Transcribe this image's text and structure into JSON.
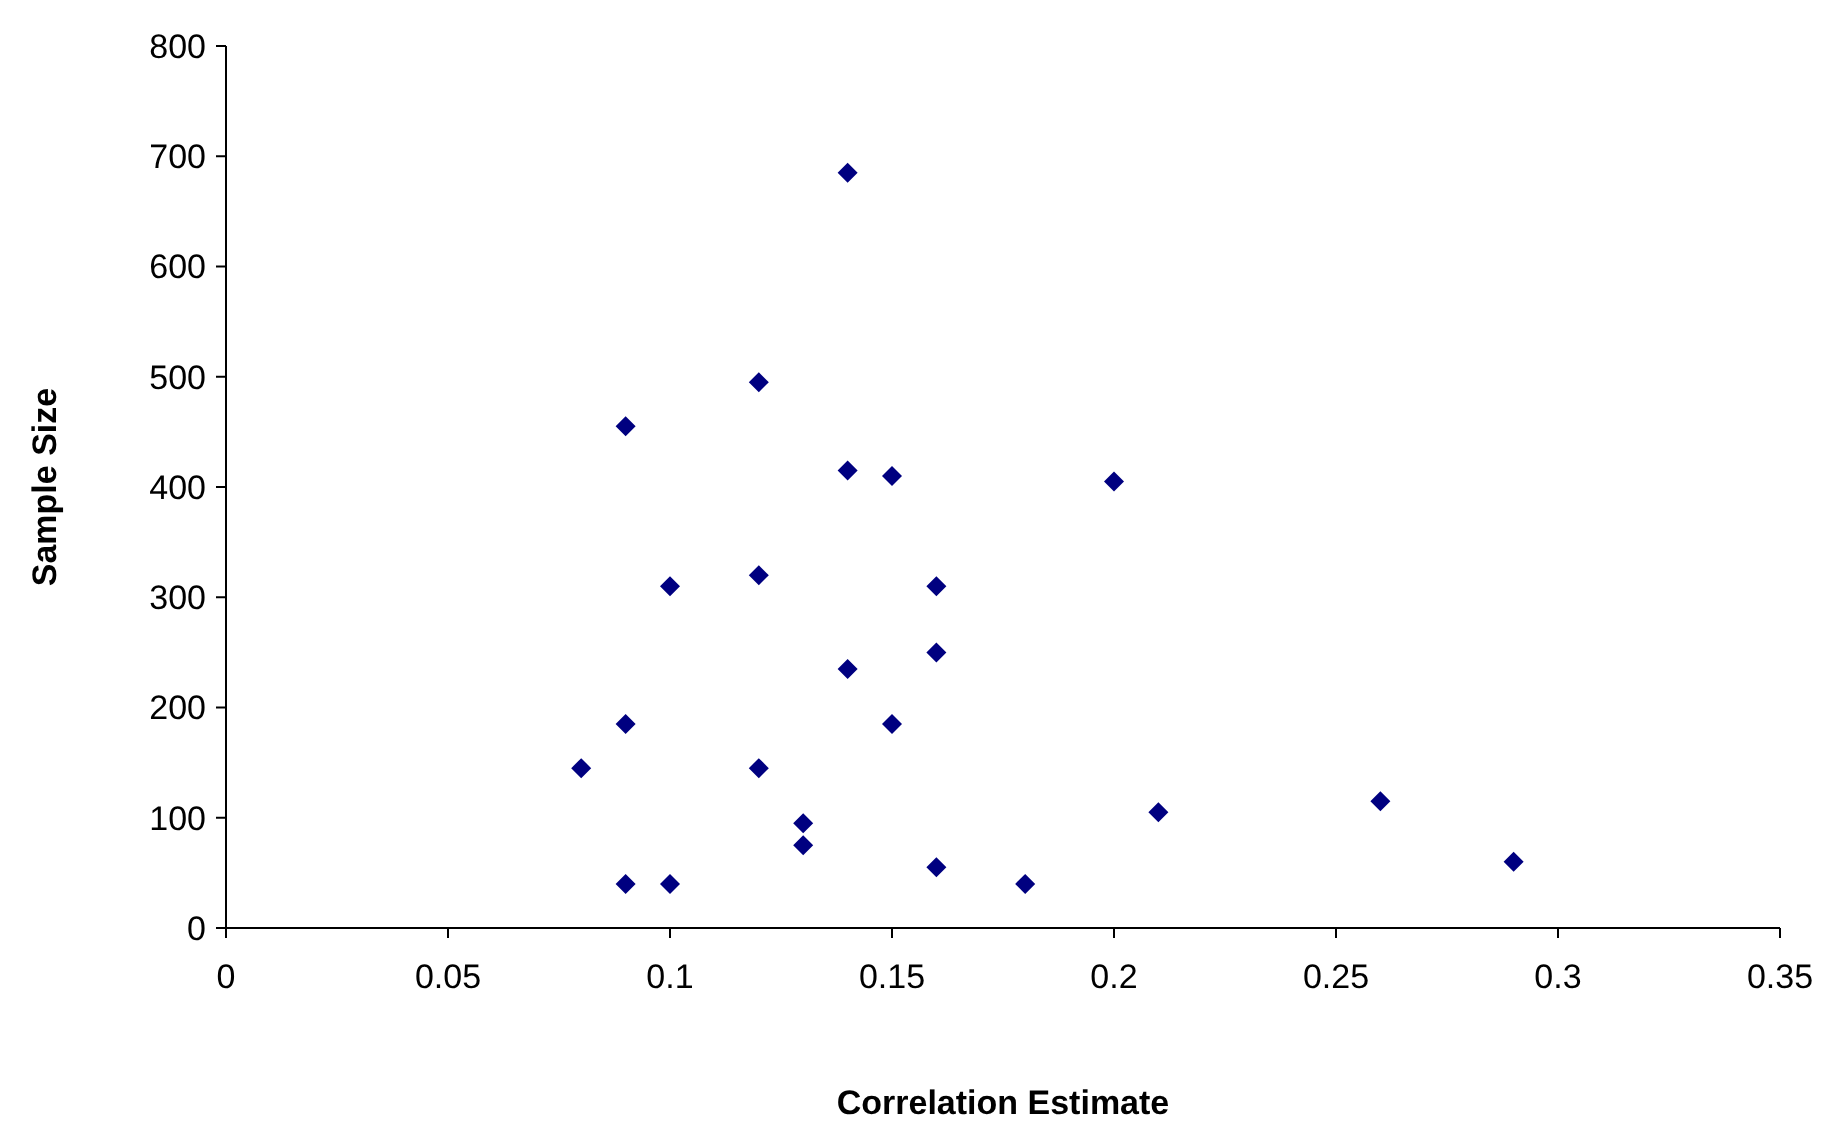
{
  "chart_data": {
    "type": "scatter",
    "xlabel": "Correlation Estimate",
    "ylabel": "Sample Size",
    "x": [
      0.08,
      0.09,
      0.09,
      0.09,
      0.1,
      0.1,
      0.12,
      0.12,
      0.12,
      0.13,
      0.13,
      0.14,
      0.14,
      0.14,
      0.15,
      0.15,
      0.16,
      0.16,
      0.16,
      0.18,
      0.2,
      0.21,
      0.26,
      0.29
    ],
    "values": [
      145,
      455,
      185,
      40,
      310,
      40,
      495,
      320,
      145,
      95,
      75,
      685,
      415,
      235,
      410,
      185,
      310,
      250,
      55,
      40,
      405,
      105,
      115,
      60
    ],
    "color": "#000080",
    "marker": "diamond",
    "grid": false,
    "xlim": [
      0,
      0.35
    ],
    "xticks": [
      0,
      0.05,
      0.1,
      0.15,
      0.2,
      0.25,
      0.3,
      0.35
    ],
    "ylim": [
      0,
      800
    ],
    "yticks": [
      0,
      100,
      200,
      300,
      400,
      500,
      600,
      700,
      800
    ]
  }
}
